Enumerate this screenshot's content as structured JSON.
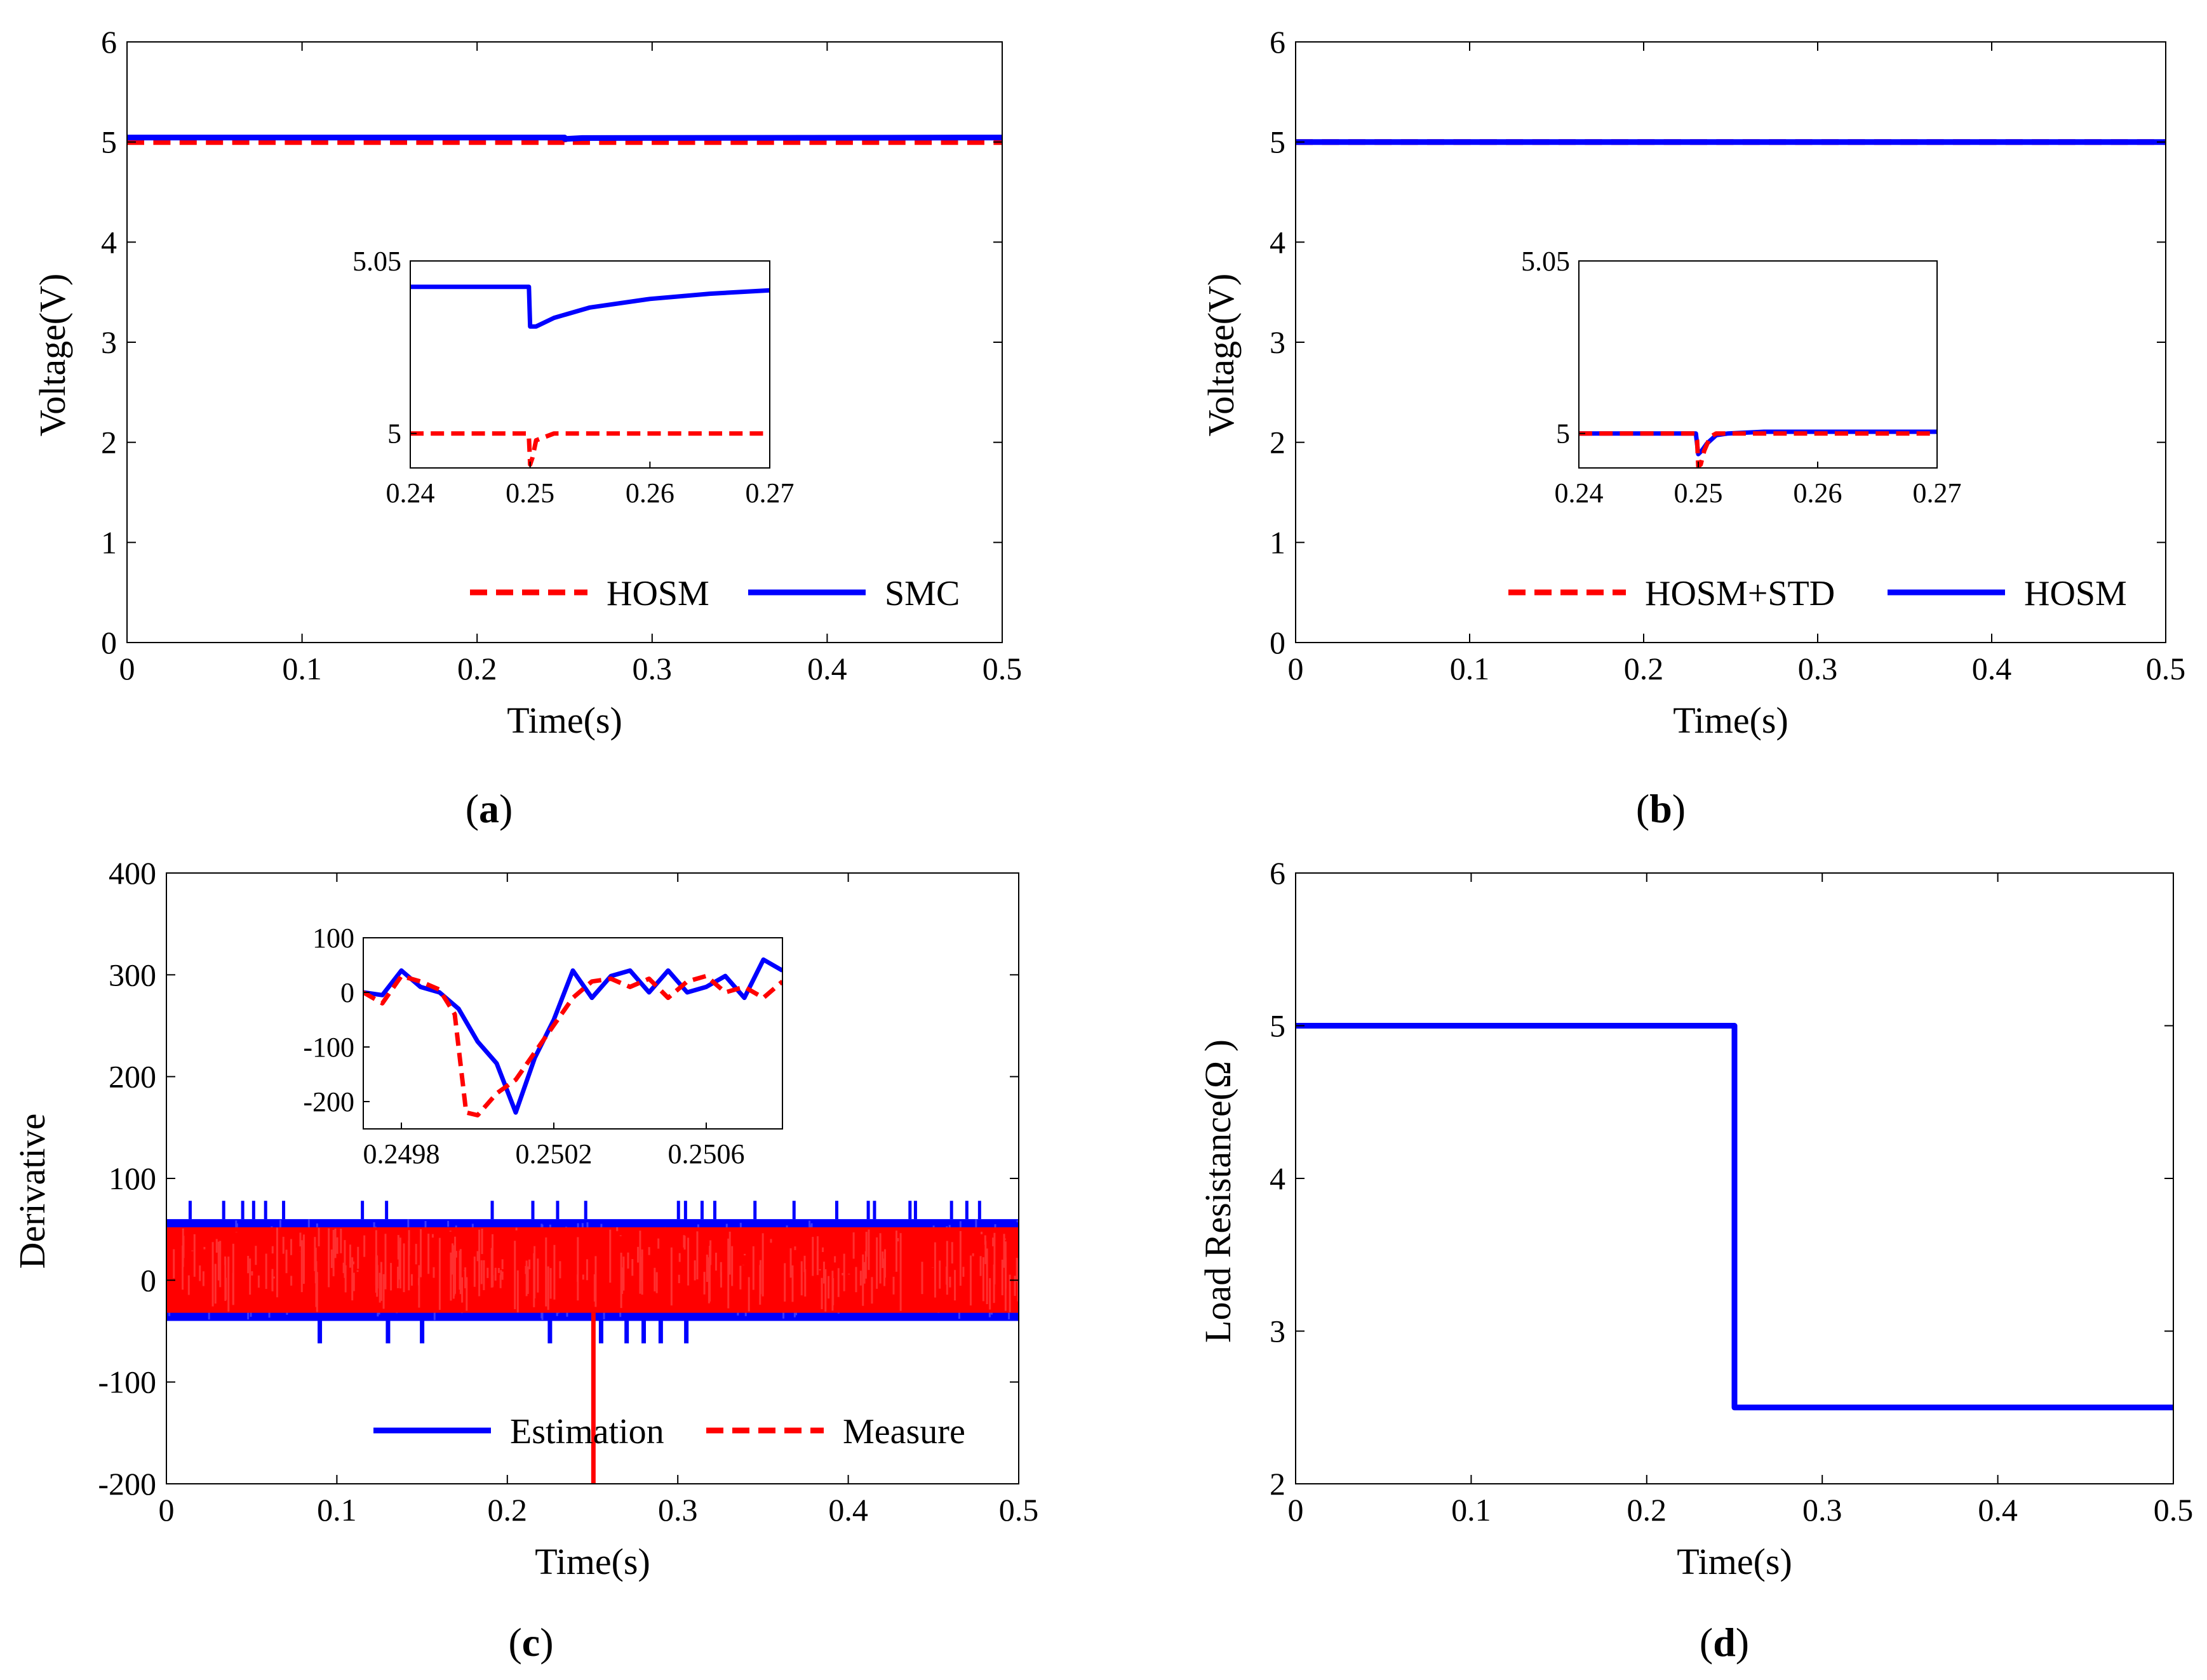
{
  "chart_data": [
    {
      "panel": "a",
      "type": "line",
      "caption": {
        "open": "(",
        "letter": "a",
        "close": ")"
      },
      "xlabel": "Time(s)",
      "ylabel": "Voltage(V)",
      "xlim": [
        0,
        0.5
      ],
      "ylim": [
        0,
        6
      ],
      "xticks": [
        0,
        0.1,
        0.2,
        0.3,
        0.4,
        0.5
      ],
      "yticks": [
        0,
        1,
        2,
        3,
        4,
        5,
        6
      ],
      "legend_position": "bottom-right",
      "series": [
        {
          "name": "HOSM",
          "color": "#ff0000",
          "dash": true,
          "x": [
            0,
            0.2499,
            0.25,
            0.2505,
            0.5
          ],
          "y": [
            5.0,
            5.0,
            4.99,
            5.0,
            5.0
          ]
        },
        {
          "name": "SMC",
          "color": "#0000ff",
          "dash": false,
          "x": [
            0,
            0.25,
            0.2501,
            0.26,
            0.5
          ],
          "y": [
            5.045,
            5.045,
            5.03,
            5.04,
            5.045
          ]
        }
      ],
      "inset": {
        "xlim": [
          0.24,
          0.27
        ],
        "ylim": [
          4.99,
          5.05
        ],
        "xticks": [
          0.24,
          0.25,
          0.26,
          0.27
        ],
        "yticks": [
          5,
          5.05
        ],
        "series": [
          {
            "name": "HOSM",
            "color": "#ff0000",
            "dash": true,
            "x": [
              0.24,
              0.2498,
              0.2499,
              0.25,
              0.2502,
              0.2505,
              0.252,
              0.27
            ],
            "y": [
              5.0,
              5.0,
              4.999,
              4.991,
              4.993,
              4.998,
              5.0,
              5.0
            ]
          },
          {
            "name": "SMC",
            "color": "#0000ff",
            "dash": false,
            "x": [
              0.24,
              0.2499,
              0.25,
              0.2505,
              0.252,
              0.255,
              0.26,
              0.265,
              0.27
            ],
            "y": [
              5.0425,
              5.0425,
              5.031,
              5.031,
              5.0335,
              5.0365,
              5.039,
              5.0405,
              5.0415
            ]
          }
        ]
      }
    },
    {
      "panel": "b",
      "type": "line",
      "caption": {
        "open": "(",
        "letter": "b",
        "close": ")"
      },
      "xlabel": "Time(s)",
      "ylabel": "Voltage(V)",
      "xlim": [
        0,
        0.5
      ],
      "ylim": [
        0,
        6
      ],
      "xticks": [
        0,
        0.1,
        0.2,
        0.3,
        0.4,
        0.5
      ],
      "yticks": [
        0,
        1,
        2,
        3,
        4,
        5,
        6
      ],
      "legend_position": "bottom-right",
      "series": [
        {
          "name": "HOSM+STD",
          "color": "#ff0000",
          "dash": true,
          "x": [
            0,
            0.5
          ],
          "y": [
            5.0,
            5.0
          ]
        },
        {
          "name": "HOSM",
          "color": "#0000ff",
          "dash": false,
          "x": [
            0,
            0.5
          ],
          "y": [
            5.0,
            5.0
          ]
        }
      ],
      "inset": {
        "xlim": [
          0.24,
          0.27
        ],
        "ylim": [
          4.99,
          5.05
        ],
        "xticks": [
          0.24,
          0.25,
          0.26,
          0.27
        ],
        "yticks": [
          5,
          5.05
        ],
        "series": [
          {
            "name": "HOSM",
            "color": "#0000ff",
            "dash": false,
            "x": [
              0.24,
              0.2498,
              0.25,
              0.2503,
              0.2507,
              0.2515,
              0.2525,
              0.2555,
              0.27
            ],
            "y": [
              5.0,
              5.0,
              4.994,
              4.995,
              4.997,
              4.9995,
              5.0,
              5.0005,
              5.0005
            ]
          },
          {
            "name": "HOSM+STD",
            "color": "#ff0000",
            "dash": true,
            "x": [
              0.24,
              0.2497,
              0.2499,
              0.25,
              0.2502,
              0.2505,
              0.251,
              0.2515,
              0.27
            ],
            "y": [
              5.0,
              5.0,
              4.998,
              4.9905,
              4.991,
              4.995,
              4.999,
              5.0,
              5.0
            ]
          }
        ]
      }
    },
    {
      "panel": "c",
      "type": "line",
      "caption": {
        "open": "(",
        "letter": "c",
        "close": ")"
      },
      "xlabel": "Time(s)",
      "ylabel": "Derivative",
      "xlim": [
        0,
        0.5
      ],
      "ylim": [
        -200,
        400
      ],
      "xticks": [
        0,
        0.1,
        0.2,
        0.3,
        0.4,
        0.5
      ],
      "yticks": [
        -200,
        -100,
        0,
        100,
        200,
        300,
        400
      ],
      "legend_position": "bottom-right",
      "series": [
        {
          "name": "Estimation",
          "color": "#0000ff",
          "dash": false,
          "band": [
            -40,
            60
          ],
          "spikes_x": [
            0.09,
            0.13,
            0.15,
            0.225,
            0.255,
            0.27,
            0.28,
            0.29,
            0.305
          ],
          "spike_y": -62
        },
        {
          "name": "Measure",
          "color": "#ff0000",
          "dash": true,
          "band": [
            -32,
            52
          ],
          "spikes_x": [
            0.2505
          ],
          "spike_y": -200
        }
      ],
      "inset": {
        "xlim": [
          0.2497,
          0.2508
        ],
        "ylim": [
          -250,
          100
        ],
        "xticks": [
          0.2498,
          0.2502,
          0.2506
        ],
        "yticks": [
          -200,
          -100,
          0,
          100
        ],
        "series": [
          {
            "name": "Estimation",
            "color": "#0000ff",
            "dash": false,
            "x": [
              0.2497,
              0.24975,
              0.2498,
              0.24985,
              0.2499,
              0.24995,
              0.25,
              0.25005,
              0.2501,
              0.25015,
              0.2502,
              0.25025,
              0.2503,
              0.25035,
              0.2504,
              0.25045,
              0.2505,
              0.25055,
              0.2506,
              0.25065,
              0.2507,
              0.25075,
              0.2508
            ],
            "y": [
              0,
              -5,
              40,
              10,
              0,
              -30,
              -90,
              -130,
              -220,
              -120,
              -50,
              40,
              -10,
              30,
              40,
              0,
              40,
              0,
              10,
              30,
              -10,
              60,
              40
            ]
          },
          {
            "name": "Measure",
            "color": "#ff0000",
            "dash": true,
            "x": [
              0.2497,
              0.24975,
              0.2498,
              0.24985,
              0.2499,
              0.24994,
              0.24997,
              0.25,
              0.25005,
              0.2501,
              0.25015,
              0.2502,
              0.25025,
              0.2503,
              0.25035,
              0.2504,
              0.25045,
              0.2505,
              0.25055,
              0.2506,
              0.25065,
              0.2507,
              0.25075,
              0.2508
            ],
            "y": [
              0,
              -20,
              30,
              20,
              5,
              -40,
              -220,
              -225,
              -185,
              -160,
              -110,
              -60,
              -10,
              20,
              25,
              10,
              25,
              -10,
              20,
              30,
              0,
              10,
              -10,
              20
            ]
          }
        ]
      }
    },
    {
      "panel": "d",
      "type": "line",
      "caption": {
        "open": "(",
        "letter": "d",
        "close": ")"
      },
      "xlabel": "Time(s)",
      "ylabel": "Load Resistance(Ω )",
      "xlim": [
        0,
        0.5
      ],
      "ylim": [
        2,
        6
      ],
      "xticks": [
        0,
        0.1,
        0.2,
        0.3,
        0.4,
        0.5
      ],
      "yticks": [
        2,
        3,
        4,
        5,
        6
      ],
      "series": [
        {
          "color": "#0000ff",
          "dash": false,
          "x": [
            0,
            0.25,
            0.25,
            0.5
          ],
          "y": [
            5,
            5,
            2.5,
            2.5
          ]
        }
      ]
    }
  ]
}
